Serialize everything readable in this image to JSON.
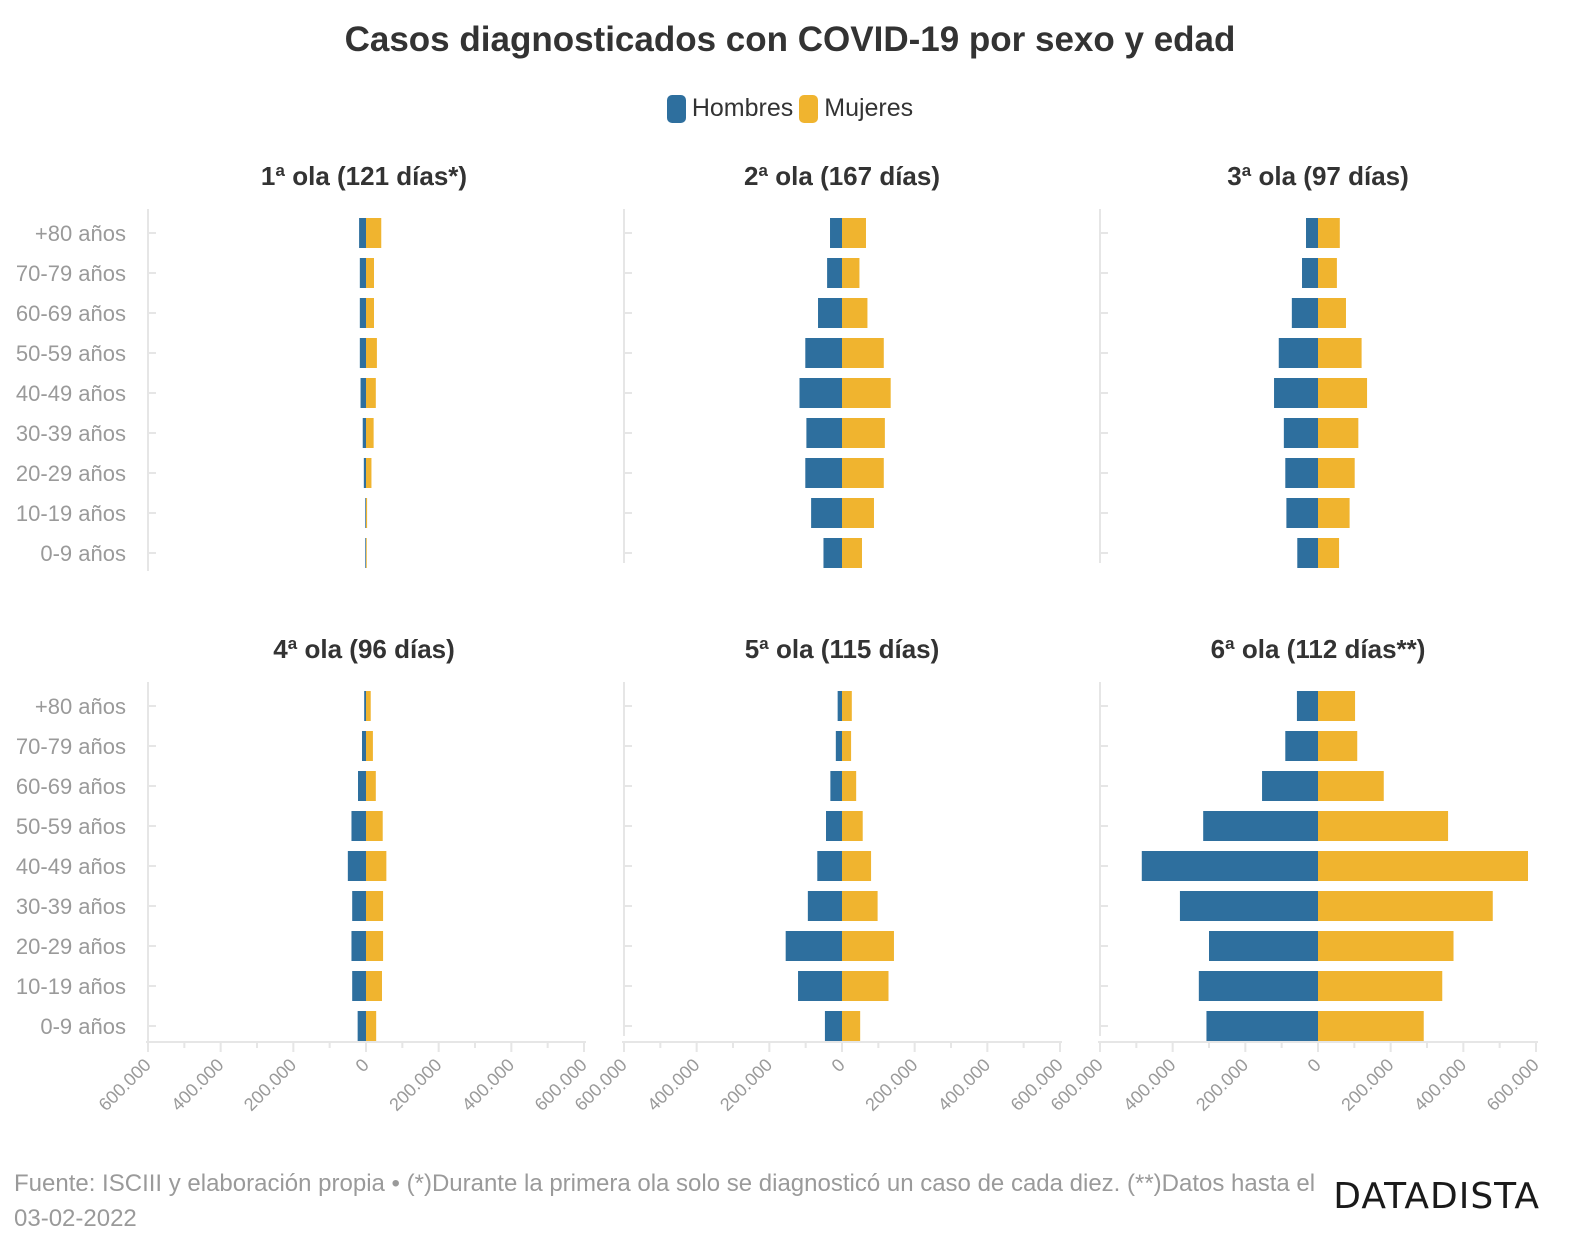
{
  "title": "Casos diagnosticados con COVID-19 por sexo y edad",
  "footer": {
    "source": "Fuente: ISCIII y elaboración propia • (*)Durante la primera ola solo se diagnosticó un caso de cada diez. (**)Datos hasta el 03-02-2022",
    "brand": "DATADISTA"
  },
  "colors": {
    "hombres": "#2e6f9e",
    "mujeres": "#f0b42f",
    "axis": "#e6e6e6",
    "tick_label": "#9a9a9a"
  },
  "chart_data": {
    "type": "bar",
    "orientation": "horizontal-diverging",
    "categories": [
      "+80 años",
      "70-79 años",
      "60-69 años",
      "50-59 años",
      "40-49 años",
      "30-39 años",
      "20-29 años",
      "10-19 años",
      "0-9 años"
    ],
    "legend": [
      "Hombres",
      "Mujeres"
    ],
    "legend_position": "top-center",
    "xlim": [
      -600000,
      600000
    ],
    "x_ticks": [
      "600.000",
      "400.000",
      "200.000",
      "0",
      "200.000",
      "400.000",
      "600.000"
    ],
    "grid": false,
    "panels": [
      {
        "title": "1ª ola (121 días*)",
        "hombres": [
          19000,
          17000,
          17000,
          17000,
          15000,
          9000,
          6000,
          2000,
          2000
        ],
        "mujeres": [
          42000,
          22000,
          22000,
          30000,
          27000,
          21000,
          15000,
          3000,
          2000
        ]
      },
      {
        "title": "2ª ola (167 días)",
        "hombres": [
          33000,
          41000,
          66000,
          101000,
          117000,
          98000,
          101000,
          85000,
          51000
        ],
        "mujeres": [
          66000,
          48000,
          70000,
          115000,
          134000,
          118000,
          115000,
          88000,
          55000
        ]
      },
      {
        "title": "3ª ola (97 días)",
        "hombres": [
          33000,
          44000,
          72000,
          108000,
          121000,
          94000,
          90000,
          87000,
          57000
        ],
        "mujeres": [
          60000,
          52000,
          77000,
          120000,
          135000,
          111000,
          101000,
          87000,
          58000
        ]
      },
      {
        "title": "4ª ola (96 días)",
        "hombres": [
          5000,
          11000,
          22000,
          40000,
          50000,
          38000,
          40000,
          38000,
          23000
        ],
        "mujeres": [
          13000,
          19000,
          27000,
          46000,
          56000,
          47000,
          47000,
          44000,
          28000
        ]
      },
      {
        "title": "5ª ola (115 días)",
        "hombres": [
          12000,
          17000,
          32000,
          44000,
          68000,
          94000,
          155000,
          121000,
          47000
        ],
        "mujeres": [
          27000,
          25000,
          39000,
          57000,
          80000,
          98000,
          143000,
          128000,
          50000
        ]
      },
      {
        "title": "6ª ola (112 días**)",
        "hombres": [
          58000,
          90000,
          154000,
          316000,
          485000,
          380000,
          300000,
          328000,
          307000
        ],
        "mujeres": [
          102000,
          108000,
          181000,
          358000,
          578000,
          481000,
          373000,
          342000,
          291000
        ]
      }
    ]
  }
}
